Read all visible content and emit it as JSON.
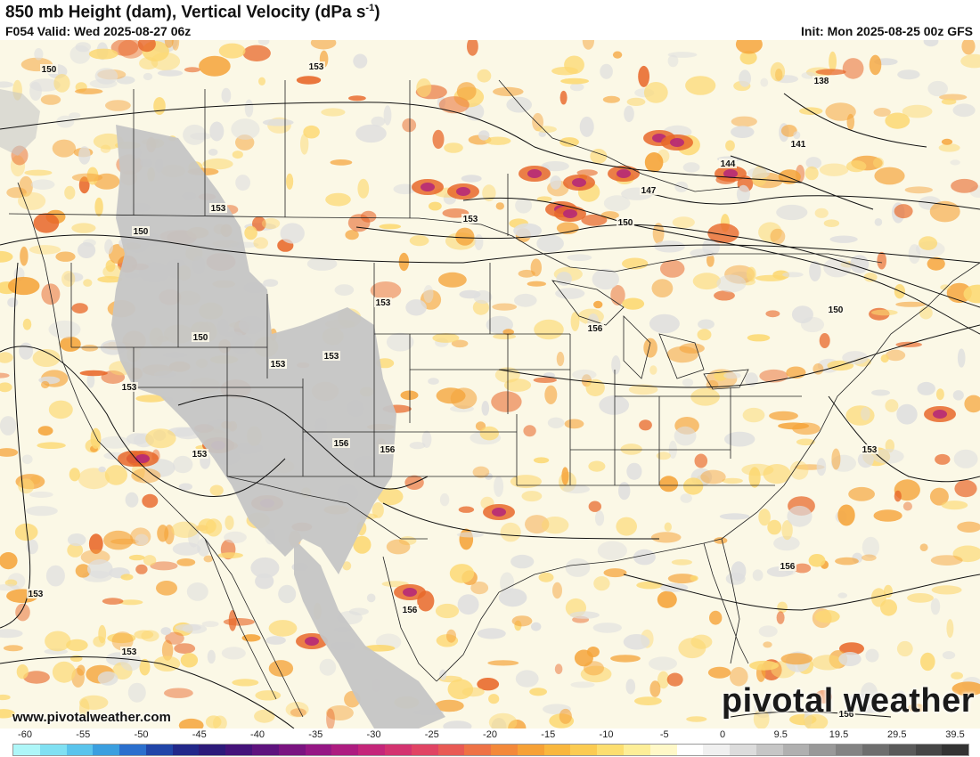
{
  "header": {
    "title": "850 mb Height (dam), Vertical Velocity (dPa s",
    "title_sup": "-1",
    "title_end": ")",
    "valid": "F054 Valid: Wed 2025-08-27 06z",
    "init": "Init: Mon 2025-08-25 00z GFS"
  },
  "footer": {
    "website": "www.pivotalweather.com",
    "logo": "pivotal weather"
  },
  "contour_labels": [
    "150",
    "153",
    "153",
    "150",
    "150",
    "153",
    "153",
    "153",
    "153",
    "153",
    "153",
    "153",
    "156",
    "156",
    "156",
    "156",
    "153",
    "147",
    "150",
    "144",
    "141",
    "138",
    "150",
    "153",
    "156",
    "156",
    "153",
    "153"
  ],
  "colorbar": {
    "labels": [
      "-60",
      "-55",
      "-50",
      "-45",
      "-40",
      "-35",
      "-30",
      "-25",
      "-20",
      "-15",
      "-10",
      "-5",
      "0",
      "9.5",
      "19.5",
      "29.5",
      "39.5"
    ],
    "colors": [
      "#aef6f8",
      "#80e0f2",
      "#5ac4ec",
      "#3b9fdf",
      "#2b6fcd",
      "#2145a8",
      "#22288a",
      "#2c1a7a",
      "#44137a",
      "#5e137e",
      "#7a1480",
      "#951784",
      "#ad1c80",
      "#c4267a",
      "#d33370",
      "#e04464",
      "#e85a55",
      "#ee7246",
      "#f3893a",
      "#f6a136",
      "#f9b73e",
      "#fbcb52",
      "#fcde70",
      "#fdee98",
      "#fff8c8",
      "#ffffff",
      "#f0f0f0",
      "#dcdcdc",
      "#c6c6c6",
      "#b0b0b0",
      "#999999",
      "#838383",
      "#6e6e6e",
      "#5a5a5a",
      "#464646",
      "#333333"
    ]
  },
  "colors": {
    "land": "#fbf7e4",
    "ocean": "#f9f5e2",
    "terrain_mask": "#c8c8c8",
    "upward_light": "#fcd872",
    "upward_mid": "#f5a43a",
    "upward_strong": "#e8682a",
    "upward_extreme": "#b3257a",
    "downward": "#dedede"
  }
}
